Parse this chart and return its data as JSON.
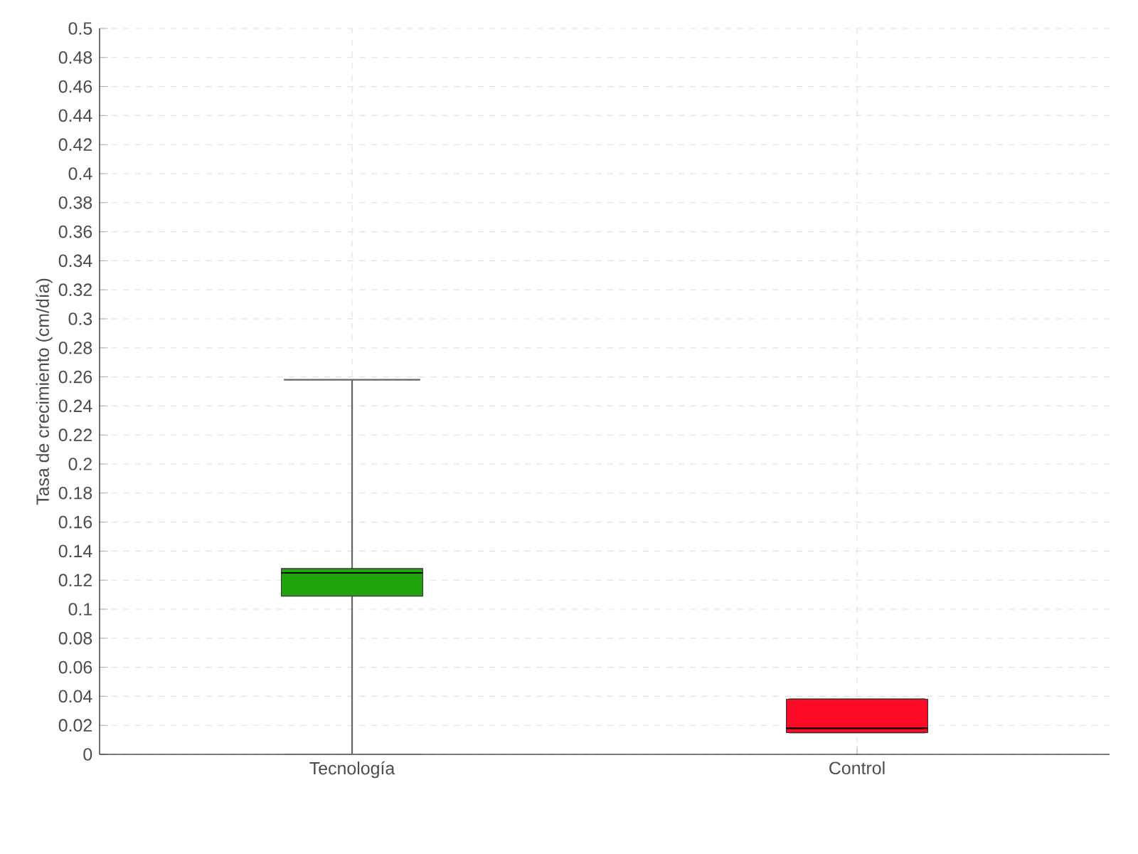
{
  "chart_data": {
    "type": "box",
    "ylabel": "Tasa de crecimiento (cm/día)",
    "categories": [
      "Tecnología",
      "Control"
    ],
    "series": [
      {
        "color": "#21a30d",
        "boxes": [
          {
            "low": 0.0,
            "q1": 0.109,
            "median": 0.125,
            "q3": 0.128,
            "high": 0.258
          },
          null
        ]
      },
      {
        "color": "#ff0a26",
        "boxes": [
          null,
          {
            "low": 0.015,
            "q1": 0.015,
            "median": 0.018,
            "q3": 0.038,
            "high": 0.038
          }
        ]
      }
    ],
    "ylim": [
      0,
      0.5
    ],
    "yticks": [
      0,
      0.02,
      0.04,
      0.06,
      0.08,
      0.1,
      0.12,
      0.14,
      0.16,
      0.18,
      0.2,
      0.22,
      0.24,
      0.26,
      0.28,
      0.3,
      0.32,
      0.34,
      0.36,
      0.38,
      0.4,
      0.42,
      0.44,
      0.46,
      0.48,
      0.5
    ],
    "grid": true
  }
}
